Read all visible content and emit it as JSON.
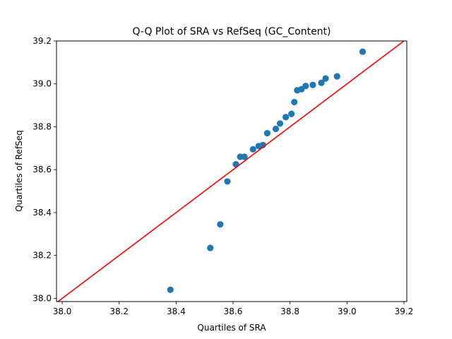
{
  "chart_data": {
    "type": "scatter",
    "title": "Q-Q Plot of SRA vs RefSeq (GC_Content)",
    "xlabel": "Quartiles of SRA",
    "ylabel": "Quartiles of RefSeq",
    "xlim": [
      37.98,
      39.21
    ],
    "ylim": [
      37.985,
      39.2
    ],
    "xticks": [
      "38.0",
      "38.2",
      "38.4",
      "38.6",
      "38.8",
      "39.0",
      "39.2"
    ],
    "yticks": [
      "38.0",
      "38.2",
      "38.4",
      "38.6",
      "38.8",
      "39.0",
      "39.2"
    ],
    "grid": false,
    "series": [
      {
        "points": [
          [
            38.38,
            38.04
          ],
          [
            38.52,
            38.235
          ],
          [
            38.555,
            38.345
          ],
          [
            38.58,
            38.545
          ],
          [
            38.61,
            38.625
          ],
          [
            38.625,
            38.66
          ],
          [
            38.64,
            38.66
          ],
          [
            38.67,
            38.695
          ],
          [
            38.69,
            38.71
          ],
          [
            38.705,
            38.715
          ],
          [
            38.72,
            38.77
          ],
          [
            38.75,
            38.79
          ],
          [
            38.765,
            38.815
          ],
          [
            38.785,
            38.845
          ],
          [
            38.805,
            38.86
          ],
          [
            38.815,
            38.915
          ],
          [
            38.825,
            38.97
          ],
          [
            38.84,
            38.975
          ],
          [
            38.855,
            38.99
          ],
          [
            38.88,
            38.995
          ],
          [
            38.91,
            39.005
          ],
          [
            38.925,
            39.025
          ],
          [
            38.965,
            39.035
          ],
          [
            39.055,
            39.15
          ]
        ],
        "color": "#1f77b4"
      }
    ],
    "reference_line": {
      "from": [
        37.98,
        37.98
      ],
      "to": [
        39.21,
        39.21
      ],
      "color": "#ff0000"
    }
  }
}
